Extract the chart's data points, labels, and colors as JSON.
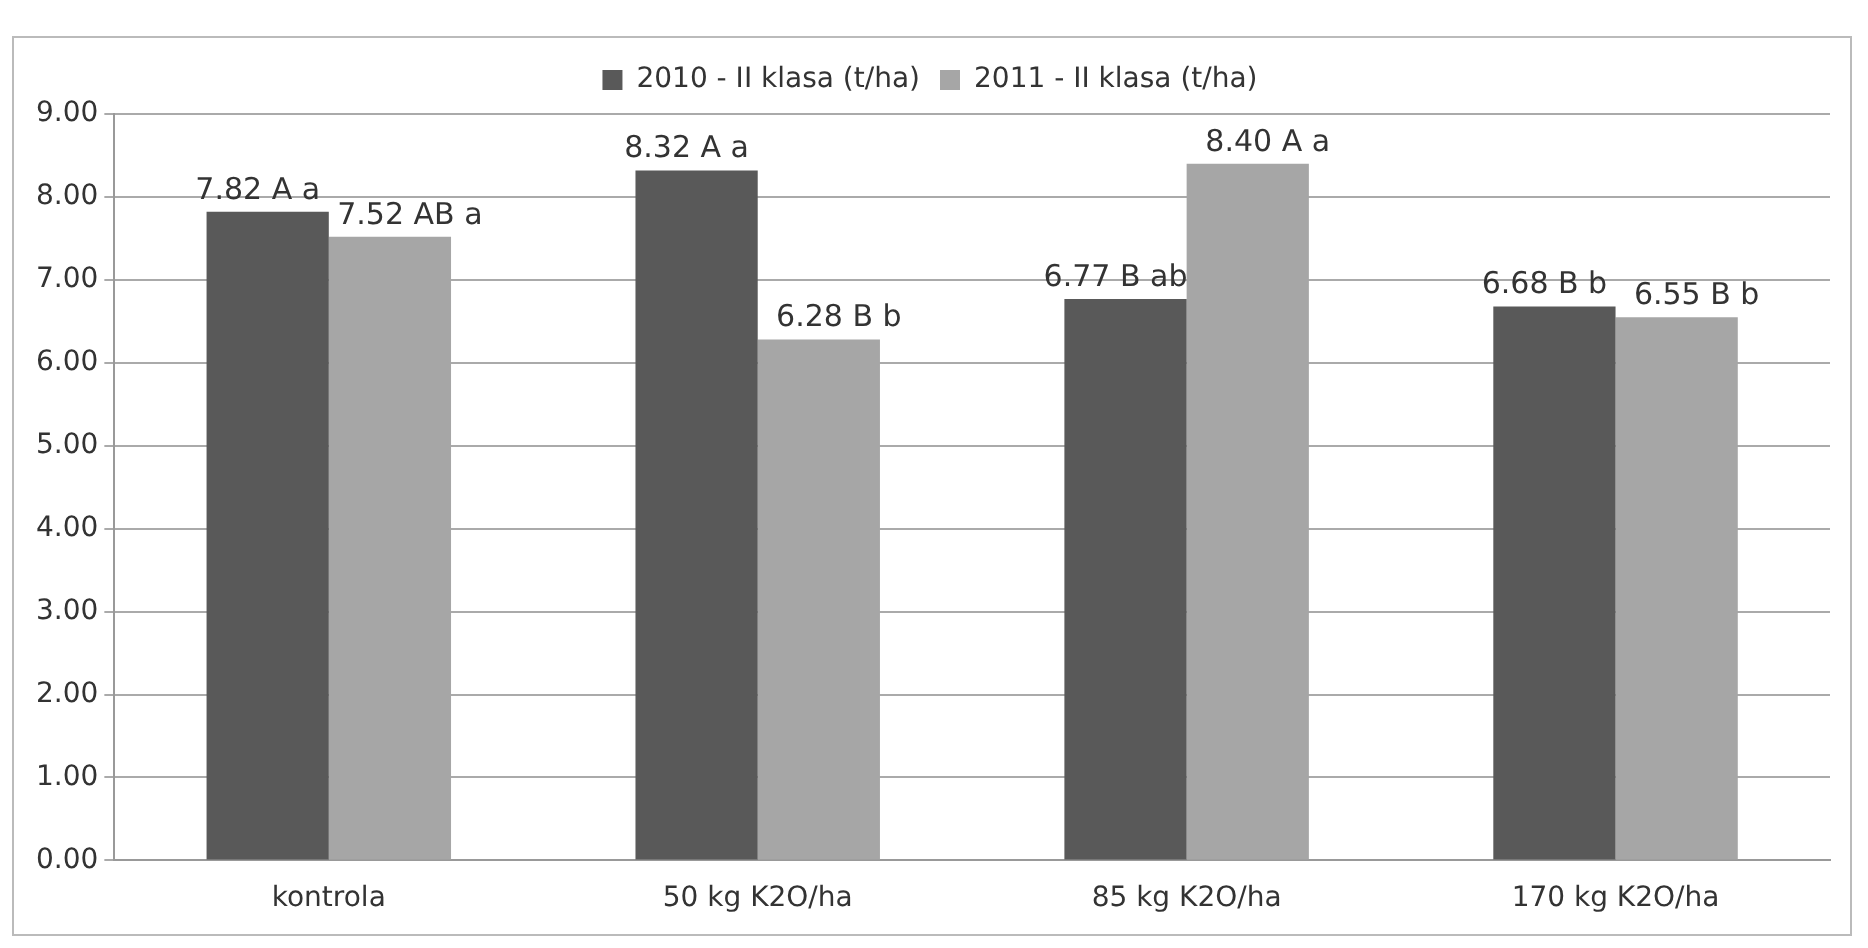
{
  "chart_data": {
    "type": "bar",
    "categories": [
      "kontrola",
      "50 kg K2O/ha",
      "85 kg K2O/ha",
      "170 kg K2O/ha"
    ],
    "series": [
      {
        "name": "2010 - II klasa (t/ha)",
        "color": "#595959",
        "values": [
          7.82,
          8.32,
          6.77,
          6.68
        ],
        "value_labels": [
          "7.82 A a",
          "8.32 A a",
          "6.77 B ab",
          "6.68 B b"
        ]
      },
      {
        "name": "2011 - II klasa (t/ha)",
        "color": "#a6a6a6",
        "values": [
          7.52,
          6.28,
          8.4,
          6.55
        ],
        "value_labels": [
          "7.52 AB a",
          "6.28 B b",
          "8.40 A a",
          "6.55 B b"
        ]
      }
    ],
    "ylim": [
      0,
      9
    ],
    "yticks": [
      {
        "value": 0,
        "label": "0.00"
      },
      {
        "value": 1,
        "label": "1.00"
      },
      {
        "value": 2,
        "label": "2.00"
      },
      {
        "value": 3,
        "label": "3.00"
      },
      {
        "value": 4,
        "label": "4.00"
      },
      {
        "value": 5,
        "label": "5.00"
      },
      {
        "value": 6,
        "label": "6.00"
      },
      {
        "value": 7,
        "label": "7.00"
      },
      {
        "value": 8,
        "label": "8.00"
      },
      {
        "value": 9,
        "label": "9.00"
      }
    ],
    "grid": "y",
    "legend": "top"
  }
}
